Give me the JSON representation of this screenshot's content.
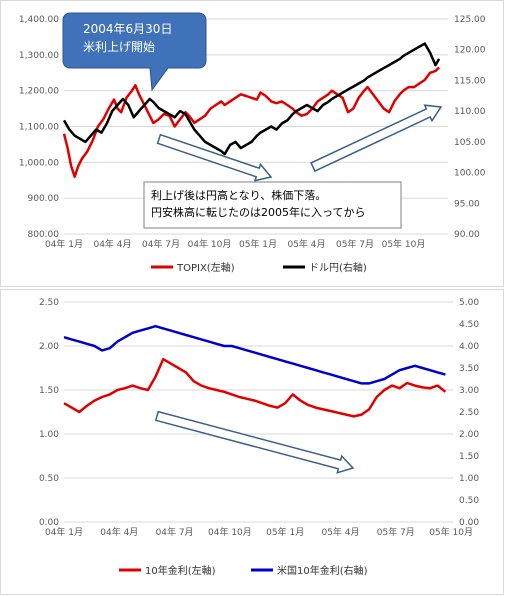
{
  "colors": {
    "red": "#e00000",
    "black": "#000000",
    "blue": "#0000cc",
    "grid": "#d9d9d9",
    "callout_fill": "#3f72b8",
    "arrow_stroke": "#3a5f8a"
  },
  "chart_data": [
    {
      "type": "line",
      "x_tick_labels": [
        "04年 1月",
        "04年 4月",
        "04年 7月",
        "04年 10月",
        "05年 1月",
        "05年 4月",
        "05年 7月",
        "05年 10月"
      ],
      "y_left": {
        "ticks": [
          "800.00",
          "900.00",
          "1,000.00",
          "1,100.00",
          "1,200.00",
          "1,300.00",
          "1,400.00"
        ],
        "ylim": [
          800,
          1400
        ]
      },
      "y_right": {
        "ticks": [
          "90.00",
          "95.00",
          "100.00",
          "105.00",
          "110.00",
          "115.00",
          "120.00",
          "125.00"
        ],
        "ylim": [
          90,
          125
        ]
      },
      "grid": true,
      "legend_position": "bottom",
      "series": [
        {
          "name": "TOPIX(左軸)",
          "axis": "left",
          "color": "red",
          "points": [
            [
              0,
              1080
            ],
            [
              0.2,
              1040
            ],
            [
              0.4,
              990
            ],
            [
              0.6,
              960
            ],
            [
              0.8,
              990
            ],
            [
              1.0,
              1010
            ],
            [
              1.3,
              1030
            ],
            [
              1.6,
              1060
            ],
            [
              1.9,
              1100
            ],
            [
              2.2,
              1120
            ],
            [
              2.5,
              1150
            ],
            [
              2.8,
              1175
            ],
            [
              3.0,
              1150
            ],
            [
              3.2,
              1140
            ],
            [
              3.5,
              1180
            ],
            [
              3.8,
              1200
            ],
            [
              4.0,
              1215
            ],
            [
              4.2,
              1190
            ],
            [
              4.4,
              1170
            ],
            [
              4.6,
              1150
            ],
            [
              4.8,
              1130
            ],
            [
              5.0,
              1110
            ],
            [
              5.3,
              1120
            ],
            [
              5.6,
              1135
            ],
            [
              5.9,
              1130
            ],
            [
              6.2,
              1100
            ],
            [
              6.5,
              1120
            ],
            [
              6.8,
              1140
            ],
            [
              7.0,
              1130
            ],
            [
              7.3,
              1110
            ],
            [
              7.6,
              1120
            ],
            [
              7.9,
              1130
            ],
            [
              8.2,
              1150
            ],
            [
              8.5,
              1160
            ],
            [
              8.8,
              1170
            ],
            [
              9.0,
              1160
            ],
            [
              9.3,
              1170
            ],
            [
              9.6,
              1180
            ],
            [
              9.9,
              1190
            ],
            [
              10.2,
              1185
            ],
            [
              10.5,
              1180
            ],
            [
              10.8,
              1175
            ],
            [
              11.0,
              1195
            ],
            [
              11.3,
              1185
            ],
            [
              11.6,
              1170
            ],
            [
              11.9,
              1165
            ],
            [
              12.2,
              1170
            ],
            [
              12.5,
              1160
            ],
            [
              12.8,
              1150
            ],
            [
              13.0,
              1140
            ],
            [
              13.3,
              1130
            ],
            [
              13.6,
              1135
            ],
            [
              13.9,
              1150
            ],
            [
              14.2,
              1170
            ],
            [
              14.5,
              1180
            ],
            [
              14.8,
              1190
            ],
            [
              15.0,
              1200
            ],
            [
              15.3,
              1190
            ],
            [
              15.6,
              1180
            ],
            [
              15.9,
              1140
            ],
            [
              16.2,
              1150
            ],
            [
              16.5,
              1180
            ],
            [
              16.8,
              1200
            ],
            [
              17.0,
              1210
            ],
            [
              17.3,
              1190
            ],
            [
              17.6,
              1170
            ],
            [
              17.9,
              1150
            ],
            [
              18.2,
              1140
            ],
            [
              18.5,
              1170
            ],
            [
              18.8,
              1190
            ],
            [
              19.0,
              1200
            ],
            [
              19.3,
              1210
            ],
            [
              19.6,
              1210
            ],
            [
              19.9,
              1220
            ],
            [
              20.2,
              1230
            ],
            [
              20.5,
              1250
            ],
            [
              20.8,
              1255
            ],
            [
              21.0,
              1265
            ]
          ]
        },
        {
          "name": "ドル円(右軸)",
          "axis": "right",
          "color": "black",
          "points": [
            [
              0,
              108.5
            ],
            [
              0.3,
              107
            ],
            [
              0.6,
              106
            ],
            [
              0.9,
              105.5
            ],
            [
              1.2,
              105
            ],
            [
              1.5,
              106
            ],
            [
              1.8,
              107
            ],
            [
              2.1,
              106.5
            ],
            [
              2.4,
              108
            ],
            [
              2.7,
              110
            ],
            [
              3.0,
              111
            ],
            [
              3.3,
              112
            ],
            [
              3.6,
              111
            ],
            [
              3.9,
              109
            ],
            [
              4.2,
              110
            ],
            [
              4.5,
              111
            ],
            [
              4.8,
              112
            ],
            [
              5.0,
              111.5
            ],
            [
              5.3,
              110.5
            ],
            [
              5.6,
              110
            ],
            [
              5.9,
              109.5
            ],
            [
              6.2,
              109
            ],
            [
              6.5,
              110
            ],
            [
              6.8,
              109.5
            ],
            [
              7.0,
              108.5
            ],
            [
              7.3,
              107
            ],
            [
              7.6,
              106
            ],
            [
              7.9,
              105
            ],
            [
              8.2,
              104.5
            ],
            [
              8.5,
              104
            ],
            [
              8.8,
              103.5
            ],
            [
              9.0,
              103
            ],
            [
              9.3,
              104.5
            ],
            [
              9.6,
              105
            ],
            [
              9.9,
              104
            ],
            [
              10.2,
              104.5
            ],
            [
              10.5,
              105
            ],
            [
              10.8,
              106
            ],
            [
              11.0,
              106.5
            ],
            [
              11.3,
              107
            ],
            [
              11.6,
              107.5
            ],
            [
              11.9,
              107
            ],
            [
              12.2,
              108
            ],
            [
              12.5,
              108.5
            ],
            [
              12.8,
              109.5
            ],
            [
              13.0,
              110
            ],
            [
              13.3,
              110.5
            ],
            [
              13.6,
              111
            ],
            [
              13.9,
              110.5
            ],
            [
              14.2,
              110
            ],
            [
              14.5,
              111
            ],
            [
              14.8,
              111.5
            ],
            [
              15.0,
              112
            ],
            [
              15.3,
              112.5
            ],
            [
              15.6,
              113
            ],
            [
              15.9,
              113.5
            ],
            [
              16.2,
              114
            ],
            [
              16.5,
              114.5
            ],
            [
              16.8,
              115
            ],
            [
              17.0,
              115.5
            ],
            [
              17.3,
              116
            ],
            [
              17.6,
              116.5
            ],
            [
              17.9,
              117
            ],
            [
              18.2,
              117.5
            ],
            [
              18.5,
              118
            ],
            [
              18.8,
              118.5
            ],
            [
              19.0,
              119
            ],
            [
              19.3,
              119.5
            ],
            [
              19.6,
              120
            ],
            [
              19.9,
              120.5
            ],
            [
              20.2,
              121
            ],
            [
              20.5,
              119.5
            ],
            [
              20.8,
              117.5
            ],
            [
              21.0,
              118.5
            ]
          ]
        }
      ],
      "callout": {
        "lines": [
          "2004年6月30日",
          "米利上げ開始"
        ]
      },
      "annotation": {
        "lines": [
          "利上げ後は円高となり、株価下落。",
          "円安株高に転じたのは2005年に入ってから"
        ]
      }
    },
    {
      "type": "line",
      "x_tick_labels": [
        "04年 1月",
        "04年 4月",
        "04年 7月",
        "04年 10月",
        "05年 1月",
        "05年 4月",
        "05年 7月",
        "05年 10月"
      ],
      "y_left": {
        "ticks": [
          "0.00",
          "0.50",
          "1.00",
          "1.50",
          "2.00",
          "2.50"
        ],
        "ylim": [
          0,
          2.5
        ]
      },
      "y_right": {
        "ticks": [
          "0.00",
          "0.50",
          "1.00",
          "1.50",
          "2.00",
          "2.50",
          "3.00",
          "3.50",
          "4.00",
          "4.50",
          "5.00"
        ],
        "ylim": [
          0,
          5
        ]
      },
      "grid": true,
      "legend_position": "bottom",
      "series": [
        {
          "name": "10年金利(左軸)",
          "axis": "left",
          "color": "red",
          "points": [
            [
              0,
              1.35
            ],
            [
              0.5,
              1.3
            ],
            [
              1.0,
              1.25
            ],
            [
              1.5,
              1.32
            ],
            [
              2.0,
              1.38
            ],
            [
              2.5,
              1.42
            ],
            [
              3.0,
              1.45
            ],
            [
              3.5,
              1.5
            ],
            [
              4.0,
              1.52
            ],
            [
              4.5,
              1.55
            ],
            [
              5.0,
              1.52
            ],
            [
              5.5,
              1.5
            ],
            [
              6.0,
              1.65
            ],
            [
              6.5,
              1.85
            ],
            [
              7.0,
              1.8
            ],
            [
              7.5,
              1.75
            ],
            [
              8.0,
              1.7
            ],
            [
              8.5,
              1.6
            ],
            [
              9.0,
              1.55
            ],
            [
              9.5,
              1.52
            ],
            [
              10.0,
              1.5
            ],
            [
              10.5,
              1.48
            ],
            [
              11.0,
              1.45
            ],
            [
              11.5,
              1.42
            ],
            [
              12.0,
              1.4
            ],
            [
              12.5,
              1.38
            ],
            [
              13.0,
              1.35
            ],
            [
              13.5,
              1.32
            ],
            [
              14.0,
              1.3
            ],
            [
              14.5,
              1.35
            ],
            [
              15.0,
              1.45
            ],
            [
              15.5,
              1.38
            ],
            [
              16.0,
              1.33
            ],
            [
              16.5,
              1.3
            ],
            [
              17.0,
              1.28
            ],
            [
              17.5,
              1.26
            ],
            [
              18.0,
              1.24
            ],
            [
              18.5,
              1.22
            ],
            [
              19.0,
              1.2
            ],
            [
              19.5,
              1.22
            ],
            [
              20.0,
              1.28
            ],
            [
              20.5,
              1.42
            ],
            [
              21.0,
              1.5
            ],
            [
              21.5,
              1.55
            ],
            [
              22.0,
              1.52
            ],
            [
              22.5,
              1.58
            ],
            [
              23.0,
              1.55
            ],
            [
              23.5,
              1.53
            ],
            [
              24.0,
              1.52
            ],
            [
              24.5,
              1.55
            ],
            [
              25.0,
              1.48
            ]
          ]
        },
        {
          "name": "米国10年金利(右軸)",
          "axis": "right",
          "color": "blue",
          "points": [
            [
              0,
              4.2
            ],
            [
              0.5,
              4.15
            ],
            [
              1.0,
              4.1
            ],
            [
              1.5,
              4.05
            ],
            [
              2.0,
              4.0
            ],
            [
              2.5,
              3.9
            ],
            [
              3.0,
              3.95
            ],
            [
              3.5,
              4.1
            ],
            [
              4.0,
              4.2
            ],
            [
              4.5,
              4.3
            ],
            [
              5.0,
              4.35
            ],
            [
              5.5,
              4.4
            ],
            [
              6.0,
              4.45
            ],
            [
              6.5,
              4.4
            ],
            [
              7.0,
              4.35
            ],
            [
              7.5,
              4.3
            ],
            [
              8.0,
              4.25
            ],
            [
              8.5,
              4.2
            ],
            [
              9.0,
              4.15
            ],
            [
              9.5,
              4.1
            ],
            [
              10.0,
              4.05
            ],
            [
              10.5,
              4.0
            ],
            [
              11.0,
              4.0
            ],
            [
              11.5,
              3.95
            ],
            [
              12.0,
              3.9
            ],
            [
              12.5,
              3.85
            ],
            [
              13.0,
              3.8
            ],
            [
              13.5,
              3.75
            ],
            [
              14.0,
              3.7
            ],
            [
              14.5,
              3.65
            ],
            [
              15.0,
              3.6
            ],
            [
              15.5,
              3.55
            ],
            [
              16.0,
              3.5
            ],
            [
              16.5,
              3.45
            ],
            [
              17.0,
              3.4
            ],
            [
              17.5,
              3.35
            ],
            [
              18.0,
              3.3
            ],
            [
              18.5,
              3.25
            ],
            [
              19.0,
              3.2
            ],
            [
              19.5,
              3.15
            ],
            [
              20.0,
              3.15
            ],
            [
              20.5,
              3.2
            ],
            [
              21.0,
              3.25
            ],
            [
              21.5,
              3.35
            ],
            [
              22.0,
              3.45
            ],
            [
              22.5,
              3.5
            ],
            [
              23.0,
              3.55
            ],
            [
              23.5,
              3.5
            ],
            [
              24.0,
              3.45
            ],
            [
              24.5,
              3.4
            ],
            [
              25.0,
              3.35
            ]
          ]
        }
      ]
    }
  ]
}
